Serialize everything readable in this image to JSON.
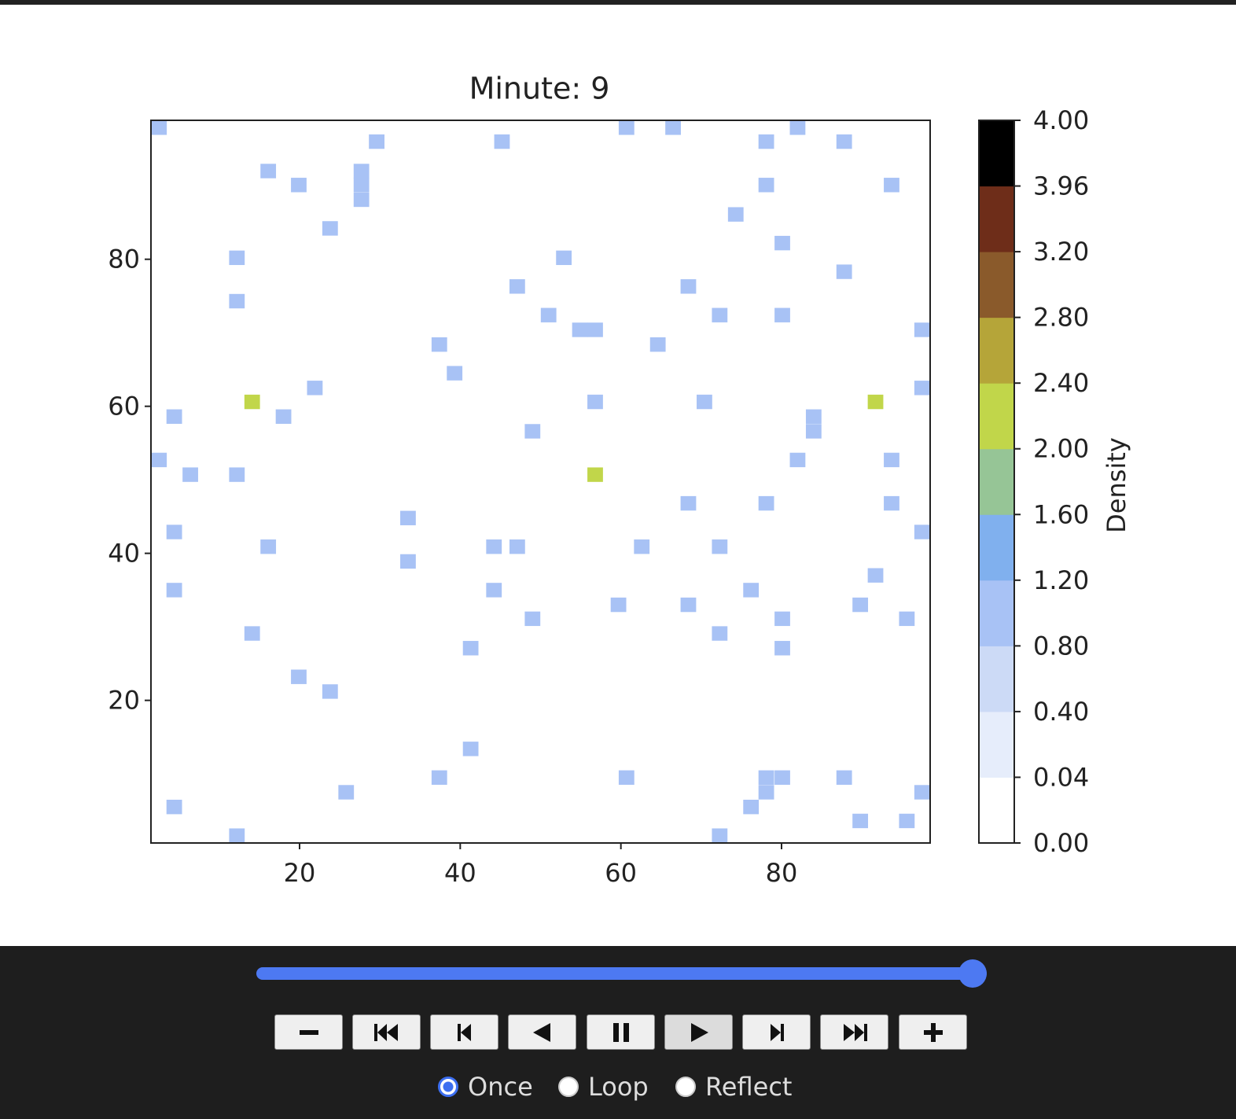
{
  "chart_data": {
    "type": "heatmap",
    "title": "Minute: 9",
    "xlim": [
      1.5,
      98.5
    ],
    "ylim": [
      0.6,
      98.9
    ],
    "xticks": [
      20,
      40,
      60,
      80
    ],
    "yticks": [
      20,
      40,
      60,
      80
    ],
    "cells": [
      {
        "x": 2.5,
        "y": 97.9,
        "value": 1
      },
      {
        "x": 29.6,
        "y": 96.0,
        "value": 1
      },
      {
        "x": 45.2,
        "y": 96.0,
        "value": 1
      },
      {
        "x": 60.7,
        "y": 97.9,
        "value": 1
      },
      {
        "x": 66.5,
        "y": 97.9,
        "value": 1
      },
      {
        "x": 78.1,
        "y": 96.0,
        "value": 1
      },
      {
        "x": 82.0,
        "y": 97.9,
        "value": 1
      },
      {
        "x": 87.8,
        "y": 96.0,
        "value": 1
      },
      {
        "x": 16.1,
        "y": 92.0,
        "value": 1
      },
      {
        "x": 19.9,
        "y": 90.1,
        "value": 1
      },
      {
        "x": 27.7,
        "y": 92.0,
        "value": 1
      },
      {
        "x": 27.7,
        "y": 90.1,
        "value": 1
      },
      {
        "x": 27.7,
        "y": 88.1,
        "value": 1
      },
      {
        "x": 78.1,
        "y": 90.1,
        "value": 1
      },
      {
        "x": 93.7,
        "y": 90.1,
        "value": 1
      },
      {
        "x": 74.3,
        "y": 86.1,
        "value": 1
      },
      {
        "x": 23.8,
        "y": 84.2,
        "value": 1
      },
      {
        "x": 80.1,
        "y": 82.2,
        "value": 1
      },
      {
        "x": 12.2,
        "y": 80.2,
        "value": 1
      },
      {
        "x": 52.9,
        "y": 80.2,
        "value": 1
      },
      {
        "x": 87.8,
        "y": 78.3,
        "value": 1
      },
      {
        "x": 47.1,
        "y": 76.3,
        "value": 1
      },
      {
        "x": 68.4,
        "y": 76.3,
        "value": 1
      },
      {
        "x": 12.2,
        "y": 74.3,
        "value": 1
      },
      {
        "x": 51.0,
        "y": 72.4,
        "value": 1
      },
      {
        "x": 72.3,
        "y": 72.4,
        "value": 1
      },
      {
        "x": 80.1,
        "y": 72.4,
        "value": 1
      },
      {
        "x": 54.9,
        "y": 70.4,
        "value": 1
      },
      {
        "x": 56.8,
        "y": 70.4,
        "value": 1
      },
      {
        "x": 97.5,
        "y": 70.4,
        "value": 1
      },
      {
        "x": 37.4,
        "y": 68.4,
        "value": 1
      },
      {
        "x": 64.6,
        "y": 68.4,
        "value": 1
      },
      {
        "x": 39.3,
        "y": 64.5,
        "value": 1
      },
      {
        "x": 21.9,
        "y": 62.5,
        "value": 1
      },
      {
        "x": 97.5,
        "y": 62.5,
        "value": 1
      },
      {
        "x": 14.1,
        "y": 60.6,
        "value": 2
      },
      {
        "x": 56.8,
        "y": 60.6,
        "value": 1
      },
      {
        "x": 70.4,
        "y": 60.6,
        "value": 1
      },
      {
        "x": 91.7,
        "y": 60.6,
        "value": 2
      },
      {
        "x": 4.4,
        "y": 58.6,
        "value": 1
      },
      {
        "x": 18.0,
        "y": 58.6,
        "value": 1
      },
      {
        "x": 84.0,
        "y": 58.6,
        "value": 1
      },
      {
        "x": 84.0,
        "y": 56.6,
        "value": 1
      },
      {
        "x": 49.0,
        "y": 56.6,
        "value": 1
      },
      {
        "x": 2.5,
        "y": 52.7,
        "value": 1
      },
      {
        "x": 82.0,
        "y": 52.7,
        "value": 1
      },
      {
        "x": 93.7,
        "y": 52.7,
        "value": 1
      },
      {
        "x": 6.4,
        "y": 50.7,
        "value": 1
      },
      {
        "x": 12.2,
        "y": 50.7,
        "value": 1
      },
      {
        "x": 56.8,
        "y": 50.7,
        "value": 2
      },
      {
        "x": 68.4,
        "y": 46.8,
        "value": 1
      },
      {
        "x": 78.1,
        "y": 46.8,
        "value": 1
      },
      {
        "x": 93.7,
        "y": 46.8,
        "value": 1
      },
      {
        "x": 33.5,
        "y": 44.8,
        "value": 1
      },
      {
        "x": 4.4,
        "y": 42.9,
        "value": 1
      },
      {
        "x": 97.5,
        "y": 42.9,
        "value": 1
      },
      {
        "x": 16.1,
        "y": 40.9,
        "value": 1
      },
      {
        "x": 44.2,
        "y": 40.9,
        "value": 1
      },
      {
        "x": 47.1,
        "y": 40.9,
        "value": 1
      },
      {
        "x": 62.6,
        "y": 40.9,
        "value": 1
      },
      {
        "x": 72.3,
        "y": 40.9,
        "value": 1
      },
      {
        "x": 33.5,
        "y": 38.9,
        "value": 1
      },
      {
        "x": 91.7,
        "y": 37.0,
        "value": 1
      },
      {
        "x": 4.4,
        "y": 35.0,
        "value": 1
      },
      {
        "x": 44.2,
        "y": 35.0,
        "value": 1
      },
      {
        "x": 76.2,
        "y": 35.0,
        "value": 1
      },
      {
        "x": 59.7,
        "y": 33.0,
        "value": 1
      },
      {
        "x": 68.4,
        "y": 33.0,
        "value": 1
      },
      {
        "x": 89.8,
        "y": 33.0,
        "value": 1
      },
      {
        "x": 49.0,
        "y": 31.1,
        "value": 1
      },
      {
        "x": 80.1,
        "y": 31.1,
        "value": 1
      },
      {
        "x": 95.6,
        "y": 31.1,
        "value": 1
      },
      {
        "x": 14.1,
        "y": 29.1,
        "value": 1
      },
      {
        "x": 72.3,
        "y": 29.1,
        "value": 1
      },
      {
        "x": 41.3,
        "y": 27.1,
        "value": 1
      },
      {
        "x": 80.1,
        "y": 27.1,
        "value": 1
      },
      {
        "x": 19.9,
        "y": 23.2,
        "value": 1
      },
      {
        "x": 23.8,
        "y": 21.2,
        "value": 1
      },
      {
        "x": 41.3,
        "y": 13.4,
        "value": 1
      },
      {
        "x": 37.4,
        "y": 9.5,
        "value": 1
      },
      {
        "x": 60.7,
        "y": 9.5,
        "value": 1
      },
      {
        "x": 78.1,
        "y": 9.5,
        "value": 1
      },
      {
        "x": 80.1,
        "y": 9.5,
        "value": 1
      },
      {
        "x": 87.8,
        "y": 9.5,
        "value": 1
      },
      {
        "x": 25.8,
        "y": 7.5,
        "value": 1
      },
      {
        "x": 78.1,
        "y": 7.5,
        "value": 1
      },
      {
        "x": 97.5,
        "y": 7.5,
        "value": 1
      },
      {
        "x": 4.4,
        "y": 5.5,
        "value": 1
      },
      {
        "x": 76.2,
        "y": 5.5,
        "value": 1
      },
      {
        "x": 89.8,
        "y": 3.6,
        "value": 1
      },
      {
        "x": 95.6,
        "y": 3.6,
        "value": 1
      },
      {
        "x": 12.2,
        "y": 1.6,
        "value": 1
      },
      {
        "x": 72.3,
        "y": 1.6,
        "value": 1
      }
    ],
    "colorbar": {
      "label": "Density",
      "ticks": [
        {
          "value": 0,
          "label": "0.00"
        },
        {
          "value": 0.04,
          "label": "0.04"
        },
        {
          "value": 0.4,
          "label": "0.40"
        },
        {
          "value": 0.8,
          "label": "0.80"
        },
        {
          "value": 1.2,
          "label": "1.20"
        },
        {
          "value": 1.6,
          "label": "1.60"
        },
        {
          "value": 2,
          "label": "2.00"
        },
        {
          "value": 2.4,
          "label": "2.40"
        },
        {
          "value": 2.8,
          "label": "2.80"
        },
        {
          "value": 3.2,
          "label": "3.20"
        },
        {
          "value": 3.96,
          "label": "3.96"
        },
        {
          "value": 4,
          "label": "4.00"
        }
      ],
      "colors": [
        "#ffffff",
        "#e6edfb",
        "#ccdaf6",
        "#a8c2f5",
        "#80b0ee",
        "#96c596",
        "#c1d64a",
        "#b5a539",
        "#8a5a2b",
        "#6e2d19",
        "#000000"
      ]
    }
  },
  "controls": {
    "loop_options": [
      "Once",
      "Loop",
      "Reflect"
    ],
    "selected": "Once"
  }
}
